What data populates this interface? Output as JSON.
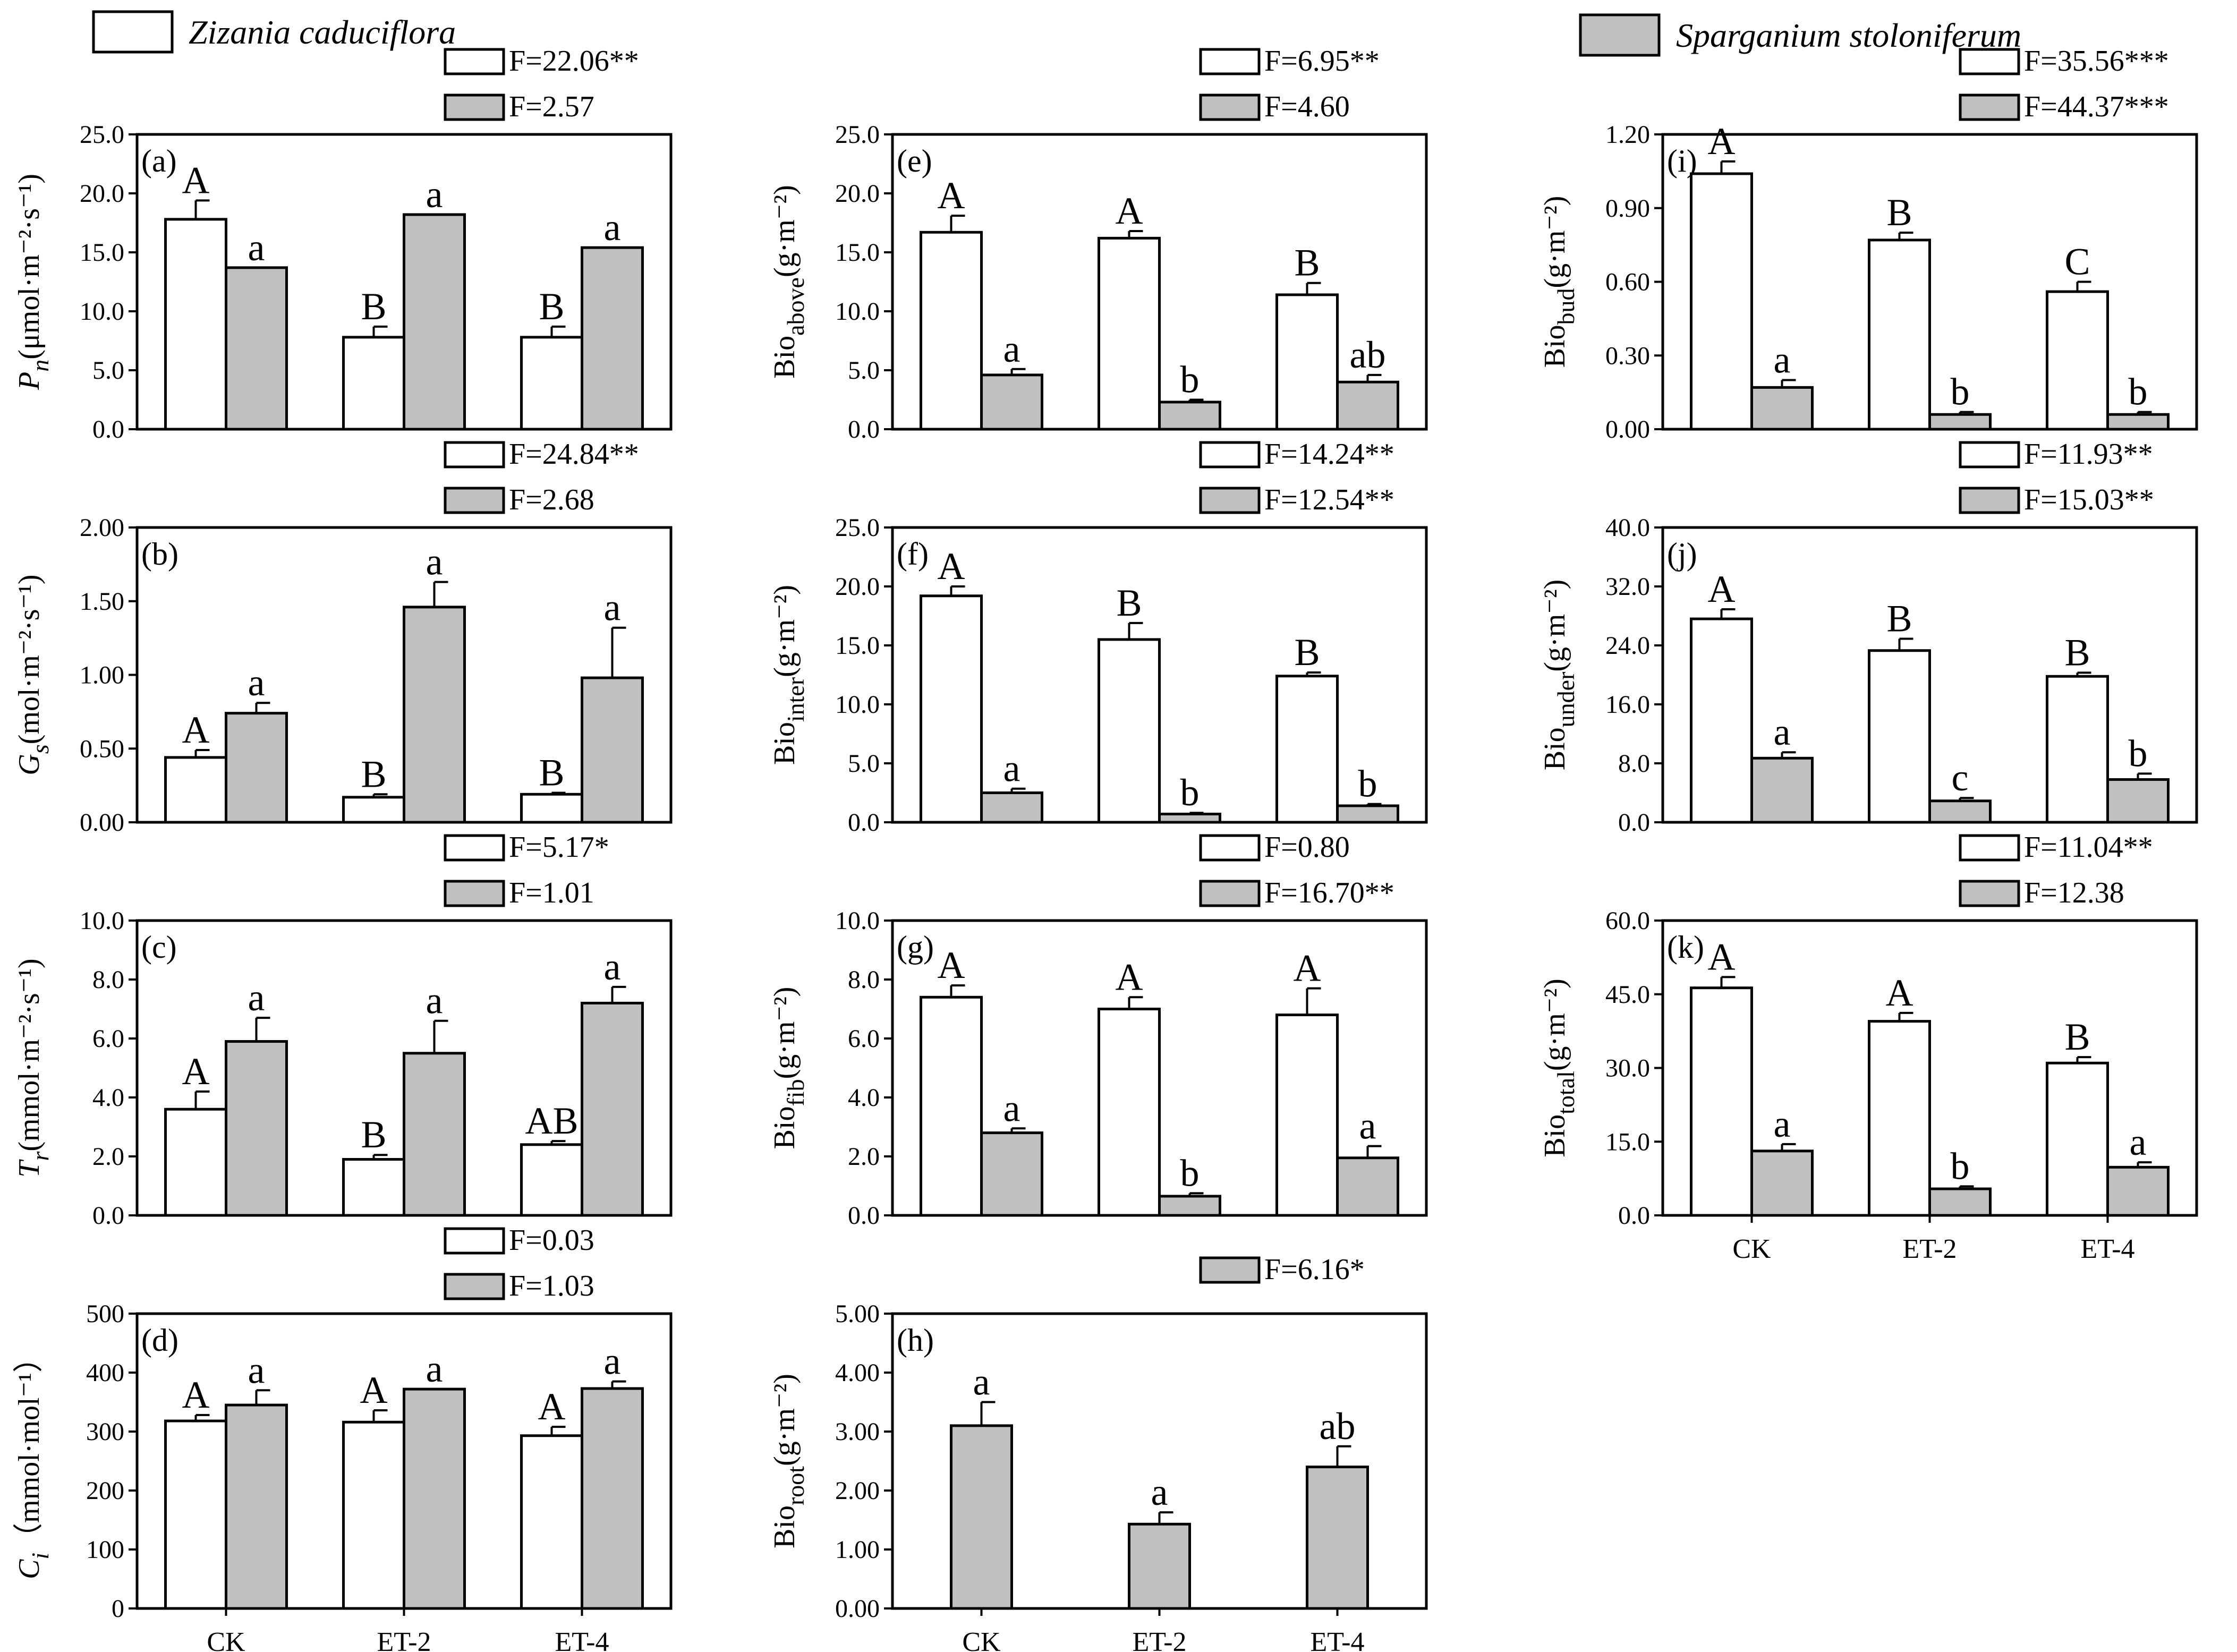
{
  "colors": {
    "zizania": "#ffffff",
    "sparganium": "#c0c0c0",
    "stroke": "#000000"
  },
  "legend": {
    "zizania_label": "Zizania caduciflora",
    "sparganium_label": "Sparganium stoloniferum"
  },
  "chart_data": [
    {
      "id": "a",
      "type": "bar",
      "panel_label": "(a)",
      "ylabel": {
        "main": "P",
        "sub": "n",
        "rest": "(μmol·m⁻²·s⁻¹)"
      },
      "categories": [
        "CK",
        "ET-2",
        "ET-4"
      ],
      "yticks": [
        "0.0",
        "5.0",
        "10.0",
        "15.0",
        "20.0",
        "25.0"
      ],
      "ylim": [
        0,
        25
      ],
      "series": [
        {
          "name": "Zizania caduciflora",
          "values": [
            17.8,
            7.8,
            7.8
          ],
          "errors": [
            1.6,
            0.9,
            0.9
          ],
          "letters": [
            "A",
            "B",
            "B"
          ],
          "f": "F=22.06**"
        },
        {
          "name": "Sparganium stoloniferum",
          "values": [
            13.7,
            18.2,
            15.4
          ],
          "errors": [
            0,
            0,
            0
          ],
          "letters": [
            "a",
            "a",
            "a"
          ],
          "f": "F=2.57"
        }
      ],
      "show_xlabels": false
    },
    {
      "id": "b",
      "type": "bar",
      "panel_label": "(b)",
      "ylabel": {
        "main": "G",
        "sub": "s",
        "rest": "(mol·m⁻²·s⁻¹)"
      },
      "categories": [
        "CK",
        "ET-2",
        "ET-4"
      ],
      "yticks": [
        "0.00",
        "0.50",
        "1.00",
        "1.50",
        "2.00"
      ],
      "ylim": [
        0,
        2
      ],
      "series": [
        {
          "name": "Zizania caduciflora",
          "values": [
            0.44,
            0.17,
            0.19
          ],
          "errors": [
            0.05,
            0.02,
            0.01
          ],
          "letters": [
            "A",
            "B",
            "B"
          ],
          "f": "F=24.84**"
        },
        {
          "name": "Sparganium stoloniferum",
          "values": [
            0.74,
            1.46,
            0.98
          ],
          "errors": [
            0.07,
            0.17,
            0.34
          ],
          "letters": [
            "a",
            "a",
            "a"
          ],
          "f": "F=2.68"
        }
      ],
      "show_xlabels": false
    },
    {
      "id": "c",
      "type": "bar",
      "panel_label": "(c)",
      "ylabel": {
        "main": "T",
        "sub": "r",
        "rest": "(mmol·m⁻²·s⁻¹)"
      },
      "categories": [
        "CK",
        "ET-2",
        "ET-4"
      ],
      "yticks": [
        "0.0",
        "2.0",
        "4.0",
        "6.0",
        "8.0",
        "10.0"
      ],
      "ylim": [
        0,
        10
      ],
      "series": [
        {
          "name": "Zizania caduciflora",
          "values": [
            3.6,
            1.9,
            2.4
          ],
          "errors": [
            0.6,
            0.15,
            0.12
          ],
          "letters": [
            "A",
            "B",
            "AB"
          ],
          "f": "F=5.17*"
        },
        {
          "name": "Sparganium stoloniferum",
          "values": [
            5.9,
            5.5,
            7.2
          ],
          "errors": [
            0.8,
            1.1,
            0.55
          ],
          "letters": [
            "a",
            "a",
            "a"
          ],
          "f": "F=1.01"
        }
      ],
      "show_xlabels": false
    },
    {
      "id": "d",
      "type": "bar",
      "panel_label": "(d)",
      "ylabel": {
        "main": "C",
        "sub": "i",
        "rest": "（mmol·mol⁻¹）"
      },
      "categories": [
        "CK",
        "ET-2",
        "ET-4"
      ],
      "yticks": [
        "0",
        "100",
        "200",
        "300",
        "400",
        "500"
      ],
      "ylim": [
        0,
        500
      ],
      "series": [
        {
          "name": "Zizania caduciflora",
          "values": [
            318,
            316,
            293
          ],
          "errors": [
            10,
            20,
            15
          ],
          "letters": [
            "A",
            "A",
            "A"
          ],
          "f": "F=0.03"
        },
        {
          "name": "Sparganium stoloniferum",
          "values": [
            345,
            372,
            373
          ],
          "errors": [
            25,
            0,
            12
          ],
          "letters": [
            "a",
            "a",
            "a"
          ],
          "f": "F=1.03"
        }
      ],
      "show_xlabels": true
    },
    {
      "id": "e",
      "type": "bar",
      "panel_label": "(e)",
      "ylabel": {
        "main": "Bio",
        "sub": "above",
        "rest": "(g·m⁻²)"
      },
      "categories": [
        "CK",
        "ET-2",
        "ET-4"
      ],
      "yticks": [
        "0.0",
        "5.0",
        "10.0",
        "15.0",
        "20.0",
        "25.0"
      ],
      "ylim": [
        0,
        25
      ],
      "series": [
        {
          "name": "Zizania caduciflora",
          "values": [
            16.7,
            16.2,
            11.4
          ],
          "errors": [
            1.4,
            0.6,
            1.0
          ],
          "letters": [
            "A",
            "A",
            "B"
          ],
          "f": "F=6.95**"
        },
        {
          "name": "Sparganium stoloniferum",
          "values": [
            4.6,
            2.3,
            4.0
          ],
          "errors": [
            0.5,
            0.2,
            0.6
          ],
          "letters": [
            "a",
            "b",
            "ab"
          ],
          "f": "F=4.60"
        }
      ],
      "show_xlabels": false
    },
    {
      "id": "f",
      "type": "bar",
      "panel_label": "(f)",
      "ylabel": {
        "main": "Bio",
        "sub": "inter",
        "rest": "(g·m⁻²)"
      },
      "categories": [
        "CK",
        "ET-2",
        "ET-4"
      ],
      "yticks": [
        "0.0",
        "5.0",
        "10.0",
        "15.0",
        "20.0",
        "25.0"
      ],
      "ylim": [
        0,
        25
      ],
      "series": [
        {
          "name": "Zizania caduciflora",
          "values": [
            19.2,
            15.5,
            12.4
          ],
          "errors": [
            0.8,
            1.4,
            0.3
          ],
          "letters": [
            "A",
            "B",
            "B"
          ],
          "f": "F=14.24**"
        },
        {
          "name": "Sparganium stoloniferum",
          "values": [
            2.5,
            0.7,
            1.4
          ],
          "errors": [
            0.35,
            0.1,
            0.15
          ],
          "letters": [
            "a",
            "b",
            "b"
          ],
          "f": "F=12.54**"
        }
      ],
      "show_xlabels": false
    },
    {
      "id": "g",
      "type": "bar",
      "panel_label": "(g)",
      "ylabel": {
        "main": "Bio",
        "sub": "fib",
        "rest": "(g·m⁻²)"
      },
      "categories": [
        "CK",
        "ET-2",
        "ET-4"
      ],
      "yticks": [
        "0.0",
        "2.0",
        "4.0",
        "6.0",
        "8.0",
        "10.0"
      ],
      "ylim": [
        0,
        10
      ],
      "series": [
        {
          "name": "Zizania caduciflora",
          "values": [
            7.4,
            7.0,
            6.8
          ],
          "errors": [
            0.4,
            0.4,
            0.9
          ],
          "letters": [
            "A",
            "A",
            "A"
          ],
          "f": "F=0.80"
        },
        {
          "name": "Sparganium stoloniferum",
          "values": [
            2.8,
            0.65,
            1.95
          ],
          "errors": [
            0.15,
            0.1,
            0.4
          ],
          "letters": [
            "a",
            "b",
            "a"
          ],
          "f": "F=16.70**"
        }
      ],
      "show_xlabels": false
    },
    {
      "id": "h",
      "type": "bar",
      "panel_label": "(h)",
      "ylabel": {
        "main": "Bio",
        "sub": "root",
        "rest": "(g·m⁻²)"
      },
      "categories": [
        "CK",
        "ET-2",
        "ET-4"
      ],
      "yticks": [
        "0.00",
        "1.00",
        "2.00",
        "3.00",
        "4.00",
        "5.00"
      ],
      "ylim": [
        0,
        5
      ],
      "series": [
        {
          "name": "Sparganium stoloniferum",
          "values": [
            3.1,
            1.43,
            2.4
          ],
          "errors": [
            0.4,
            0.2,
            0.35
          ],
          "letters": [
            "a",
            "a",
            "ab"
          ],
          "f": "F=6.16*"
        }
      ],
      "show_xlabels": true
    },
    {
      "id": "i",
      "type": "bar",
      "panel_label": "(i)",
      "ylabel": {
        "main": "Bio",
        "sub": "bud",
        "rest": "(g·m⁻²)"
      },
      "categories": [
        "CK",
        "ET-2",
        "ET-4"
      ],
      "yticks": [
        "0.00",
        "0.30",
        "0.60",
        "0.90",
        "1.20"
      ],
      "ylim": [
        0,
        1.2
      ],
      "series": [
        {
          "name": "Zizania caduciflora",
          "values": [
            1.04,
            0.77,
            0.56
          ],
          "errors": [
            0.05,
            0.03,
            0.04
          ],
          "letters": [
            "A",
            "B",
            "C"
          ],
          "f": "F=35.56***"
        },
        {
          "name": "Sparganium stoloniferum",
          "values": [
            0.17,
            0.06,
            0.06
          ],
          "errors": [
            0.03,
            0.01,
            0.01
          ],
          "letters": [
            "a",
            "b",
            "b"
          ],
          "f": "F=44.37***"
        }
      ],
      "show_xlabels": false
    },
    {
      "id": "j",
      "type": "bar",
      "panel_label": "(j)",
      "ylabel": {
        "main": "Bio",
        "sub": "under",
        "rest": "(g·m⁻²)"
      },
      "categories": [
        "CK",
        "ET-2",
        "ET-4"
      ],
      "yticks": [
        "0.0",
        "8.0",
        "16.0",
        "24.0",
        "32.0",
        "40.0"
      ],
      "ylim": [
        0,
        40
      ],
      "series": [
        {
          "name": "Zizania caduciflora",
          "values": [
            27.6,
            23.3,
            19.8
          ],
          "errors": [
            1.3,
            1.6,
            0.5
          ],
          "letters": [
            "A",
            "B",
            "B"
          ],
          "f": "F=11.93**"
        },
        {
          "name": "Sparganium stoloniferum",
          "values": [
            8.7,
            2.9,
            5.8
          ],
          "errors": [
            0.8,
            0.4,
            0.8
          ],
          "letters": [
            "a",
            "c",
            "b"
          ],
          "f": "F=15.03**"
        }
      ],
      "show_xlabels": false
    },
    {
      "id": "k",
      "type": "bar",
      "panel_label": "(k)",
      "ylabel": {
        "main": "Bio",
        "sub": "total",
        "rest": "(g·m⁻²)"
      },
      "categories": [
        "CK",
        "ET-2",
        "ET-4"
      ],
      "yticks": [
        "0.0",
        "15.0",
        "30.0",
        "45.0",
        "60.0"
      ],
      "ylim": [
        0,
        60
      ],
      "series": [
        {
          "name": "Zizania caduciflora",
          "values": [
            46.3,
            39.5,
            31.0
          ],
          "errors": [
            2.2,
            1.7,
            1.2
          ],
          "letters": [
            "A",
            "A",
            "B"
          ],
          "f": "F=11.04**"
        },
        {
          "name": "Sparganium stoloniferum",
          "values": [
            13.1,
            5.4,
            9.8
          ],
          "errors": [
            1.4,
            0.5,
            1.0
          ],
          "letters": [
            "a",
            "b",
            "a"
          ],
          "f": "F=12.38"
        }
      ],
      "show_xlabels": true
    }
  ]
}
